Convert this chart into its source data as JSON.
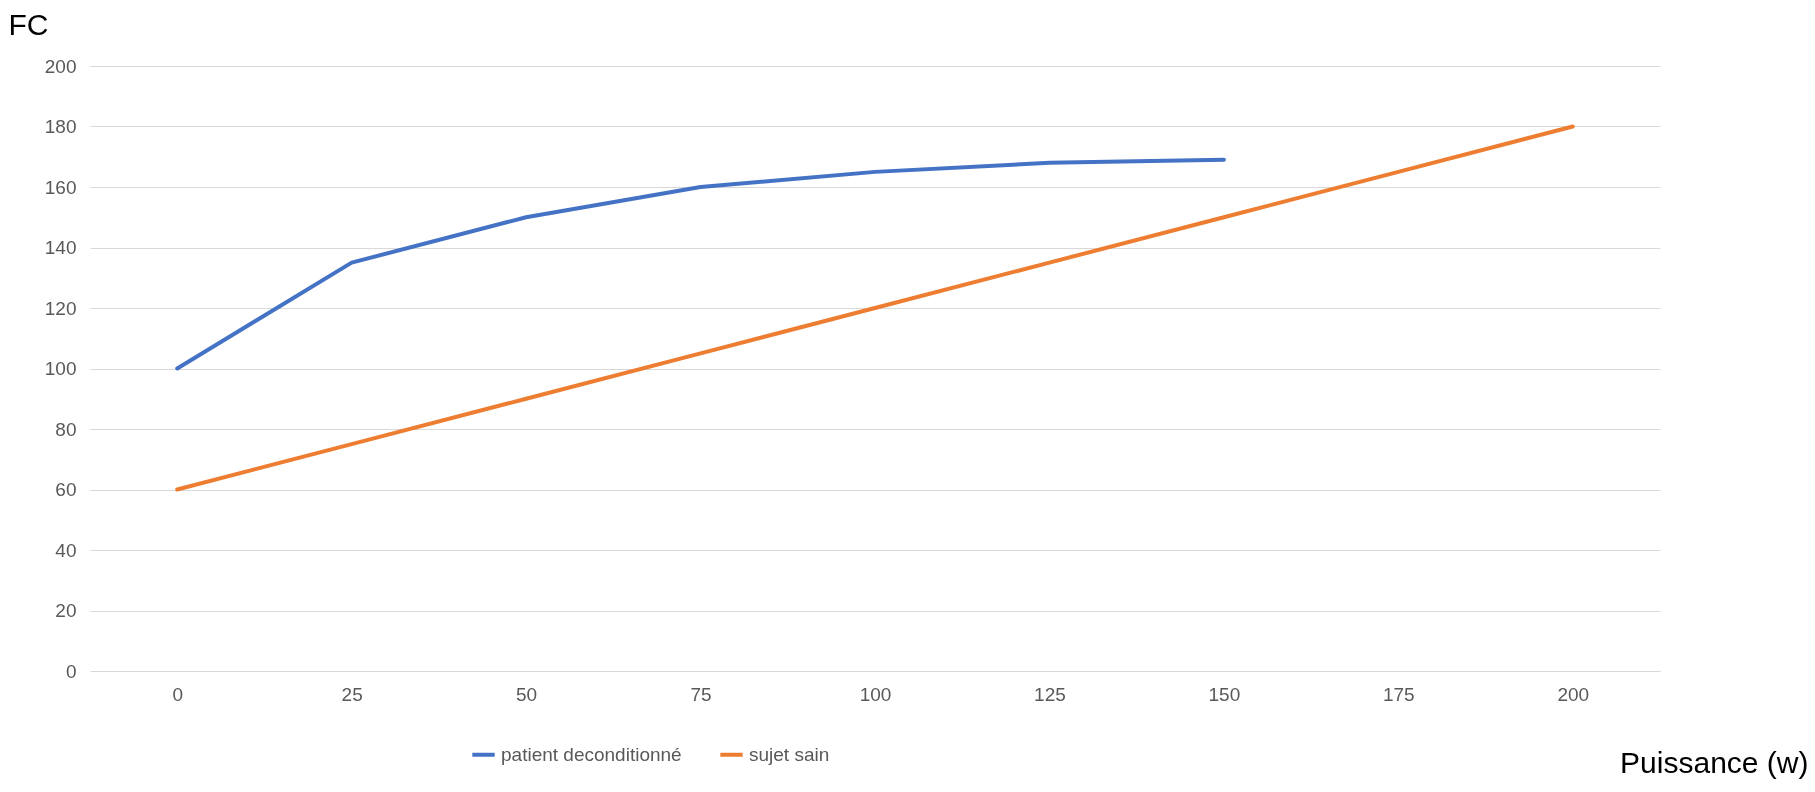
{
  "chart_data": {
    "type": "line",
    "xlabel": "Puissance (w)",
    "ylabel": "FC",
    "categories": [
      "0",
      "25",
      "50",
      "75",
      "100",
      "125",
      "150",
      "175",
      "200"
    ],
    "series": [
      {
        "name": "patient deconditionné",
        "color": "#4472c4",
        "values": [
          100,
          135,
          150,
          160,
          165,
          168,
          169,
          null,
          null
        ]
      },
      {
        "name": "sujet sain",
        "color": "#ed7d31",
        "values": [
          60,
          75,
          90,
          105,
          120,
          135,
          150,
          165,
          180
        ]
      }
    ],
    "ylim": [
      0,
      200
    ],
    "yticks": [
      0,
      20,
      40,
      60,
      80,
      100,
      120,
      140,
      160,
      180,
      200
    ],
    "grid": "y",
    "legend": "bottom",
    "marker": "none",
    "line_style": "solid"
  }
}
